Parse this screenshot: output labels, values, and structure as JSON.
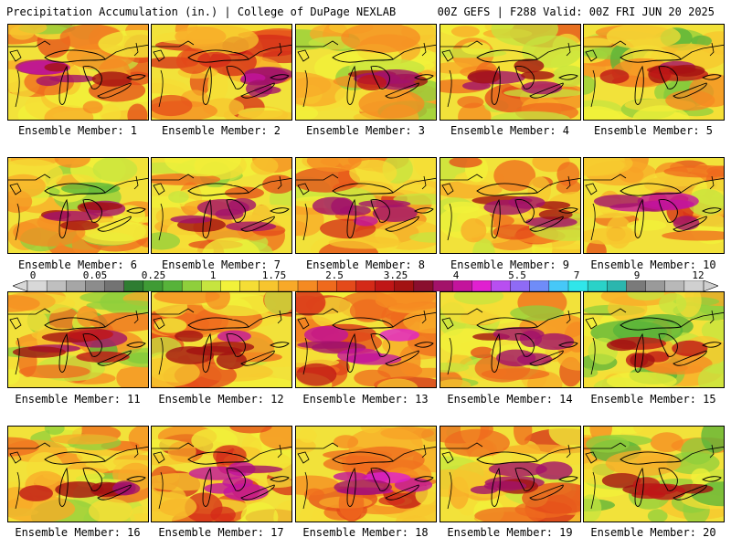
{
  "header": {
    "left_title": "Precipitation Accumulation (in.) | College of DuPage NEXLAB",
    "right_title": "00Z GEFS | F288 Valid: 00Z FRI JUN 20 2025"
  },
  "colorbar": {
    "tick_labels": [
      "0",
      "0.05",
      "0.25",
      "1",
      "1.75",
      "2.5",
      "3.25",
      "4",
      "5.5",
      "7",
      "9",
      "12"
    ],
    "colors": [
      "#d8d8d8",
      "#bfbfbf",
      "#a6a6a6",
      "#8c8c8c",
      "#737373",
      "#2e7d32",
      "#3f9b35",
      "#57b33a",
      "#8fcf3c",
      "#c6e43f",
      "#f2f23a",
      "#f5dd35",
      "#f7c52e",
      "#f8a928",
      "#f58a22",
      "#ef6a1d",
      "#e44a1a",
      "#d42a18",
      "#bf1616",
      "#a31212",
      "#8a0f2e",
      "#a3126a",
      "#c3149c",
      "#e020d0",
      "#b84ff0",
      "#8f6bf5",
      "#6f8cf8",
      "#46c8f8",
      "#30e6ea",
      "#2ad2c8",
      "#2bb6ae",
      "#7a7a7a",
      "#9a9a9a",
      "#b8b8b8",
      "#d0d0d0"
    ]
  },
  "panels": [
    {
      "caption": "Ensemble Member: 1",
      "level": 0.55
    },
    {
      "caption": "Ensemble Member: 2",
      "level": 0.7
    },
    {
      "caption": "Ensemble Member: 3",
      "level": 0.45
    },
    {
      "caption": "Ensemble Member: 4",
      "level": 0.55
    },
    {
      "caption": "Ensemble Member: 5",
      "level": 0.35
    },
    {
      "caption": "Ensemble Member: 6",
      "level": 0.4
    },
    {
      "caption": "Ensemble Member: 7",
      "level": 0.5
    },
    {
      "caption": "Ensemble Member: 8",
      "level": 0.6
    },
    {
      "caption": "Ensemble Member: 9",
      "level": 0.55
    },
    {
      "caption": "Ensemble Member: 10",
      "level": 0.65
    },
    {
      "caption": "Ensemble Member: 11",
      "level": 0.4
    },
    {
      "caption": "Ensemble Member: 12",
      "level": 0.55
    },
    {
      "caption": "Ensemble Member: 13",
      "level": 0.7
    },
    {
      "caption": "Ensemble Member: 14",
      "level": 0.5
    },
    {
      "caption": "Ensemble Member: 15",
      "level": 0.35
    },
    {
      "caption": "Ensemble Member: 16",
      "level": 0.45
    },
    {
      "caption": "Ensemble Member: 17",
      "level": 0.7
    },
    {
      "caption": "Ensemble Member: 18",
      "level": 0.8
    },
    {
      "caption": "Ensemble Member: 19",
      "level": 0.6
    },
    {
      "caption": "Ensemble Member: 20",
      "level": 0.3
    }
  ]
}
